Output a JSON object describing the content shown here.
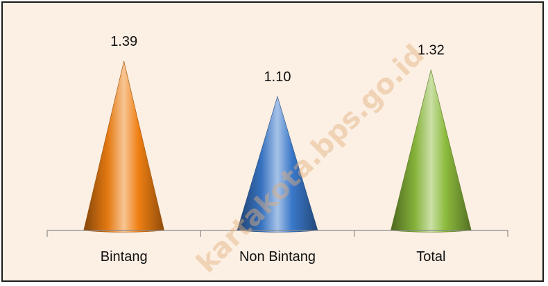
{
  "watermark": "kartakota.bps.go.id",
  "chart_data": {
    "type": "bar",
    "bar_shape": "cone",
    "categories": [
      "Bintang",
      "Non Bintang",
      "Total"
    ],
    "values": [
      1.39,
      1.1,
      1.32
    ],
    "value_labels": [
      "1.39",
      "1.10",
      "1.32"
    ],
    "colors": [
      "#f07f12",
      "#3a78c9",
      "#8cbb3c"
    ],
    "ylim": [
      0,
      1.39
    ],
    "grid": false,
    "legend": "none",
    "background": "#fcefe3"
  }
}
